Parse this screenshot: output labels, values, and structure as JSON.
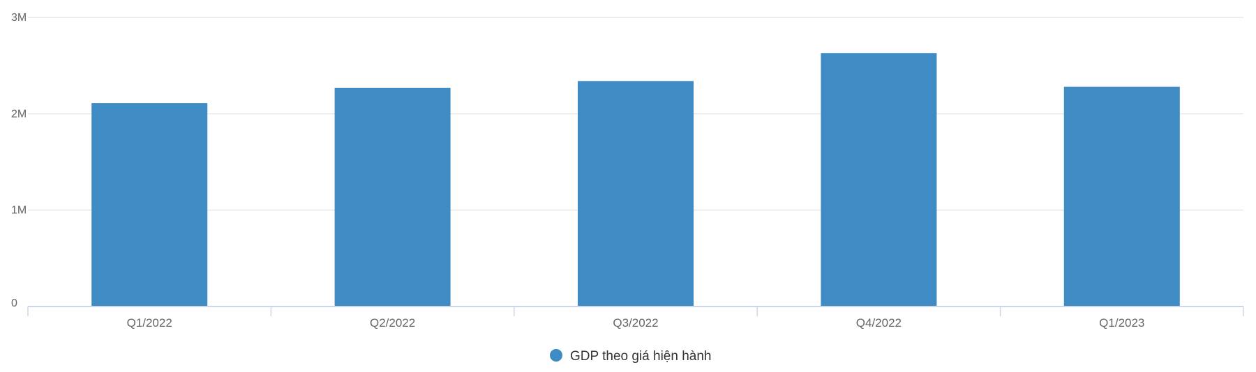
{
  "chart_data": {
    "type": "bar",
    "categories": [
      "Q1/2022",
      "Q2/2022",
      "Q3/2022",
      "Q4/2022",
      "Q1/2023"
    ],
    "series": [
      {
        "name": "GDP theo giá hiện hành",
        "values": [
          2110000,
          2270000,
          2340000,
          2630000,
          2280000
        ],
        "color": "#3f8bc3"
      }
    ],
    "ylim": [
      0,
      3000000
    ],
    "yticks": [
      0,
      1000000,
      2000000,
      3000000
    ],
    "ytick_labels": [
      "0",
      "1M",
      "2M",
      "3M"
    ],
    "grid": true,
    "legend": "bottom-center",
    "title": "",
    "xlabel": "",
    "ylabel": ""
  }
}
